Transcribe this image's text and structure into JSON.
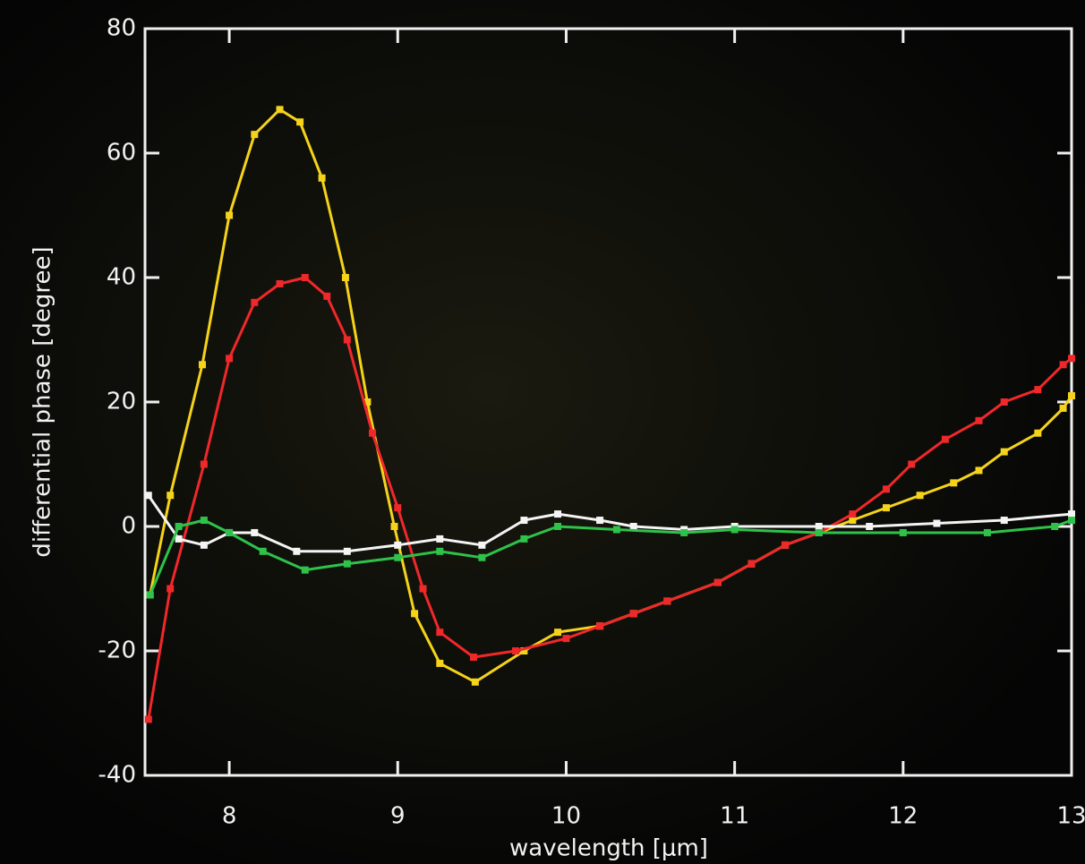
{
  "chart_data": {
    "type": "line",
    "x_label": "wavelength [μm]",
    "y_label": "differential phase [degree]",
    "xlim": [
      7.5,
      13
    ],
    "ylim": [
      -40,
      80
    ],
    "xticks": [
      8,
      9,
      10,
      11,
      12,
      13
    ],
    "yticks": [
      -40,
      -20,
      0,
      20,
      40,
      60,
      80
    ],
    "series": [
      {
        "color": "#f5d31a",
        "x": [
          7.53,
          7.65,
          7.84,
          8.0,
          8.15,
          8.3,
          8.42,
          8.55,
          8.69,
          8.82,
          8.98,
          9.1,
          9.25,
          9.46,
          9.75,
          9.95,
          10.2,
          10.4,
          10.6,
          10.9,
          11.1,
          11.3,
          11.5,
          11.7,
          11.9,
          12.1,
          12.3,
          12.45,
          12.6,
          12.8,
          12.95,
          13.0
        ],
        "values": [
          -11,
          5,
          26,
          50,
          63,
          67,
          65,
          56,
          40,
          20,
          0,
          -14,
          -22,
          -25,
          -20,
          -17,
          -16,
          -14,
          -12,
          -9,
          -6,
          -3,
          -1,
          1,
          3,
          5,
          7,
          9,
          12,
          15,
          19,
          21
        ]
      },
      {
        "color": "#f0282a",
        "x": [
          7.52,
          7.65,
          7.85,
          8.0,
          8.15,
          8.3,
          8.45,
          8.58,
          8.7,
          8.85,
          9.0,
          9.15,
          9.25,
          9.45,
          9.7,
          10.0,
          10.2,
          10.4,
          10.6,
          10.9,
          11.1,
          11.3,
          11.5,
          11.7,
          11.9,
          12.05,
          12.25,
          12.45,
          12.6,
          12.8,
          12.95,
          13.0
        ],
        "values": [
          -31,
          -10,
          10,
          27,
          36,
          39,
          40,
          37,
          30,
          15,
          3,
          -10,
          -17,
          -21,
          -20,
          -18,
          -16,
          -14,
          -12,
          -9,
          -6,
          -3,
          -1,
          2,
          6,
          10,
          14,
          17,
          20,
          22,
          26,
          27
        ]
      },
      {
        "color": "#f4f4f4",
        "x": [
          7.52,
          7.7,
          7.85,
          8.0,
          8.15,
          8.4,
          8.7,
          9.0,
          9.25,
          9.5,
          9.75,
          9.95,
          10.2,
          10.4,
          10.7,
          11.0,
          11.5,
          11.8,
          12.2,
          12.6,
          13.0
        ],
        "values": [
          5,
          -2,
          -3,
          -1,
          -1,
          -4,
          -4,
          -3,
          -2,
          -3,
          1,
          2,
          1,
          0,
          -0.5,
          0,
          0,
          0,
          0.5,
          1,
          2
        ]
      },
      {
        "color": "#2ec24a",
        "x": [
          7.53,
          7.7,
          7.85,
          8.0,
          8.2,
          8.45,
          8.7,
          9.0,
          9.25,
          9.5,
          9.75,
          9.95,
          10.3,
          10.7,
          11.0,
          11.5,
          12.0,
          12.5,
          12.9,
          13.0
        ],
        "values": [
          -11,
          0,
          1,
          -1,
          -4,
          -7,
          -6,
          -5,
          -4,
          -5,
          -2,
          0,
          -0.5,
          -1,
          -0.5,
          -1,
          -1,
          -1,
          0,
          1
        ]
      }
    ]
  }
}
